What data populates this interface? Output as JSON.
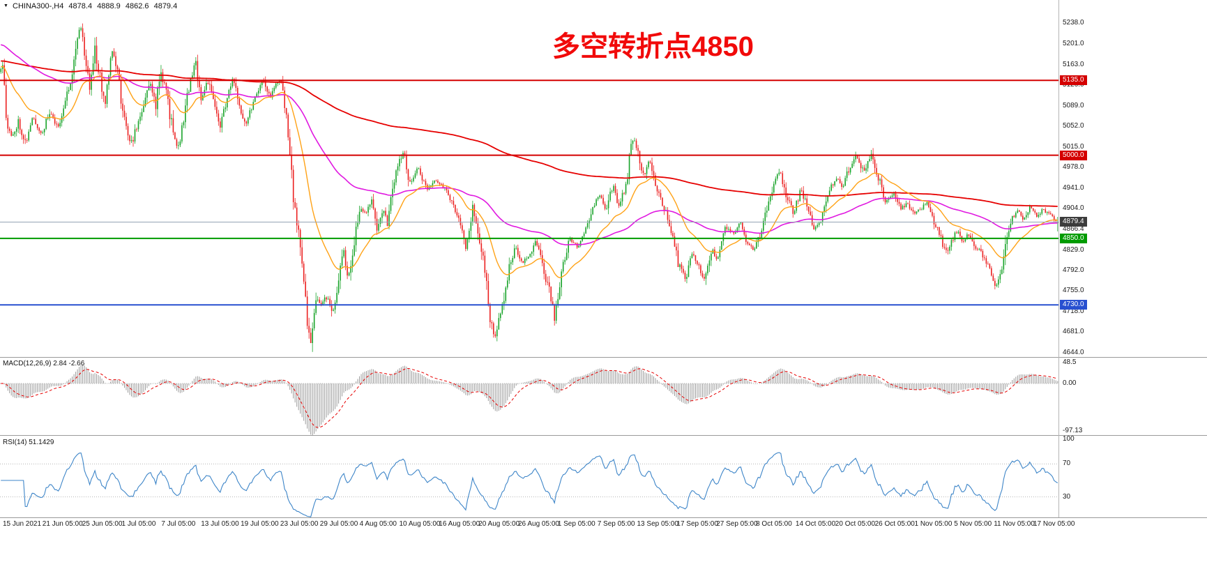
{
  "app": {
    "symbol_header": {
      "marker": "▼",
      "symbol_period": "CHINA300-,H4",
      "open": "4878.4",
      "high": "4888.9",
      "low": "4862.6",
      "close": "4879.4"
    },
    "annotation": {
      "text": "多空转折点4850",
      "color": "#f10a0a"
    }
  },
  "colors": {
    "up": "#18a329",
    "down": "#eb2020",
    "macd_hist": "#9b9b9b",
    "macd_signal": "#e60000",
    "rsi_line": "#3d85c8",
    "current_price_line": "#94a2b4",
    "price_tag_bg": "#3c3c3c",
    "separator": "#9a9a9a",
    "axis_text": "#1a1a1a",
    "grid_dotted": "#b4b4b4"
  },
  "price_axis": {
    "ticks": [
      "5238.0",
      "5201.0",
      "5163.0",
      "5126.0",
      "5089.0",
      "5052.0",
      "5015.0",
      "4978.0",
      "4941.0",
      "4904.0",
      "4866.4",
      "4829.0",
      "4792.0",
      "4755.0",
      "4718.0",
      "4681.0",
      "4644.0"
    ],
    "current_label": "4879.4"
  },
  "time_axis": {
    "labels": [
      "15 Jun 2021",
      "21 Jun 05:00",
      "25 Jun 05:00",
      "1 Jul 05:00",
      "7 Jul 05:00",
      "13 Jul 05:00",
      "19 Jul 05:00",
      "23 Jul 05:00",
      "29 Jul 05:00",
      "4 Aug 05:00",
      "10 Aug 05:00",
      "16 Aug 05:00",
      "20 Aug 05:00",
      "26 Aug 05:00",
      "1 Sep 05:00",
      "7 Sep 05:00",
      "13 Sep 05:00",
      "17 Sep 05:00",
      "27 Sep 05:00",
      "8 Oct 05:00",
      "14 Oct 05:00",
      "20 Oct 05:00",
      "26 Oct 05:00",
      "1 Nov 05:00",
      "5 Nov 05:00",
      "11 Nov 05:00",
      "17 Nov 05:00"
    ]
  },
  "panels": {
    "macd": {
      "title": "MACD(12,26,9) 2.84 -2.66",
      "scale_labels": [
        "48.5",
        "0.00",
        "-97.13"
      ]
    },
    "rsi": {
      "title": "RSI(14) 51.1429",
      "scale_labels": [
        "100",
        "70",
        "30"
      ]
    }
  },
  "chart_data": {
    "type": "candlestick",
    "symbol": "CHINA300-",
    "timeframe": "H4",
    "x_range": [
      "15 Jun 2021",
      "17 Nov 2021"
    ],
    "y_range": [
      4636,
      5280
    ],
    "candle_count": 608,
    "noise_seed": 11,
    "current_price": 4879.4,
    "last_candle": {
      "open": 4878.4,
      "high": 4888.9,
      "low": 4862.6,
      "close": 4879.4
    },
    "key_levels": [
      {
        "label": "5135.0",
        "price": 5135.0,
        "color": "#d40000"
      },
      {
        "label": "5000.0",
        "price": 5000.0,
        "color": "#d40000"
      },
      {
        "label": "4850.0",
        "price": 4850.0,
        "color": "#009b00"
      },
      {
        "label": "4730.0",
        "price": 4730.0,
        "color": "#2850d0"
      }
    ],
    "moving_averages": [
      {
        "name": "ma-slow-red",
        "period": 400,
        "init": 5170,
        "color": "#e60000",
        "width": 1.8
      },
      {
        "name": "ma-mid-magenta",
        "period": 110,
        "init": 5200,
        "color": "#e019e0",
        "width": 1.6
      },
      {
        "name": "ma-fast-orange",
        "period": 28,
        "init": 5160,
        "color": "#ffa216",
        "width": 1.4
      }
    ],
    "indicators": {
      "macd": {
        "fast": 12,
        "slow": 26,
        "signal_period": 9,
        "main_value": 2.84,
        "signal_value": -2.66,
        "scale_max": 48.5,
        "scale_min": -97.13
      },
      "rsi": {
        "period": 14,
        "value": 51.1429,
        "upper_level": 70,
        "lower_level": 30
      }
    },
    "price_path": [
      [
        0,
        5150
      ],
      [
        0.004,
        5172
      ],
      [
        0.007,
        5058
      ],
      [
        0.012,
        5030
      ],
      [
        0.018,
        5062
      ],
      [
        0.025,
        5022
      ],
      [
        0.032,
        5068
      ],
      [
        0.04,
        5038
      ],
      [
        0.048,
        5078
      ],
      [
        0.055,
        5048
      ],
      [
        0.062,
        5092
      ],
      [
        0.068,
        5142
      ],
      [
        0.075,
        5225
      ],
      [
        0.078,
        5232
      ],
      [
        0.082,
        5160
      ],
      [
        0.086,
        5122
      ],
      [
        0.09,
        5198
      ],
      [
        0.095,
        5142
      ],
      [
        0.1,
        5092
      ],
      [
        0.106,
        5196
      ],
      [
        0.112,
        5150
      ],
      [
        0.118,
        5062
      ],
      [
        0.125,
        5022
      ],
      [
        0.132,
        5062
      ],
      [
        0.138,
        5102
      ],
      [
        0.143,
        5132
      ],
      [
        0.148,
        5090
      ],
      [
        0.153,
        5152
      ],
      [
        0.158,
        5112
      ],
      [
        0.165,
        5032
      ],
      [
        0.17,
        5012
      ],
      [
        0.176,
        5092
      ],
      [
        0.181,
        5135
      ],
      [
        0.186,
        5166
      ],
      [
        0.191,
        5102
      ],
      [
        0.197,
        5135
      ],
      [
        0.203,
        5092
      ],
      [
        0.209,
        5052
      ],
      [
        0.215,
        5102
      ],
      [
        0.221,
        5135
      ],
      [
        0.227,
        5092
      ],
      [
        0.233,
        5056
      ],
      [
        0.239,
        5092
      ],
      [
        0.245,
        5122
      ],
      [
        0.25,
        5136
      ],
      [
        0.256,
        5102
      ],
      [
        0.261,
        5126
      ],
      [
        0.266,
        5136
      ],
      [
        0.271,
        5082
      ],
      [
        0.275,
        4992
      ],
      [
        0.279,
        4902
      ],
      [
        0.283,
        4862
      ],
      [
        0.287,
        4802
      ],
      [
        0.291,
        4692
      ],
      [
        0.294,
        4656
      ],
      [
        0.297,
        4702
      ],
      [
        0.3,
        4742
      ],
      [
        0.305,
        4732
      ],
      [
        0.31,
        4746
      ],
      [
        0.315,
        4712
      ],
      [
        0.32,
        4756
      ],
      [
        0.325,
        4832
      ],
      [
        0.33,
        4778
      ],
      [
        0.336,
        4852
      ],
      [
        0.341,
        4904
      ],
      [
        0.347,
        4898
      ],
      [
        0.352,
        4916
      ],
      [
        0.357,
        4866
      ],
      [
        0.362,
        4904
      ],
      [
        0.367,
        4876
      ],
      [
        0.373,
        4952
      ],
      [
        0.381,
        5008
      ],
      [
        0.388,
        4952
      ],
      [
        0.396,
        4976
      ],
      [
        0.404,
        4936
      ],
      [
        0.412,
        4956
      ],
      [
        0.42,
        4942
      ],
      [
        0.428,
        4916
      ],
      [
        0.436,
        4872
      ],
      [
        0.441,
        4836
      ],
      [
        0.447,
        4906
      ],
      [
        0.453,
        4856
      ],
      [
        0.459,
        4792
      ],
      [
        0.464,
        4702
      ],
      [
        0.469,
        4672
      ],
      [
        0.475,
        4726
      ],
      [
        0.481,
        4792
      ],
      [
        0.487,
        4836
      ],
      [
        0.494,
        4806
      ],
      [
        0.5,
        4816
      ],
      [
        0.507,
        4846
      ],
      [
        0.513,
        4802
      ],
      [
        0.519,
        4762
      ],
      [
        0.525,
        4702
      ],
      [
        0.531,
        4792
      ],
      [
        0.539,
        4846
      ],
      [
        0.546,
        4836
      ],
      [
        0.553,
        4856
      ],
      [
        0.56,
        4904
      ],
      [
        0.567,
        4926
      ],
      [
        0.574,
        4902
      ],
      [
        0.58,
        4946
      ],
      [
        0.586,
        4906
      ],
      [
        0.593,
        4956
      ],
      [
        0.599,
        5040
      ],
      [
        0.604,
        5002
      ],
      [
        0.609,
        4962
      ],
      [
        0.614,
        4996
      ],
      [
        0.62,
        4942
      ],
      [
        0.628,
        4906
      ],
      [
        0.636,
        4856
      ],
      [
        0.642,
        4802
      ],
      [
        0.648,
        4776
      ],
      [
        0.654,
        4822
      ],
      [
        0.66,
        4802
      ],
      [
        0.666,
        4778
      ],
      [
        0.673,
        4832
      ],
      [
        0.679,
        4812
      ],
      [
        0.687,
        4872
      ],
      [
        0.694,
        4856
      ],
      [
        0.7,
        4882
      ],
      [
        0.706,
        4842
      ],
      [
        0.714,
        4828
      ],
      [
        0.722,
        4878
      ],
      [
        0.73,
        4938
      ],
      [
        0.738,
        4972
      ],
      [
        0.744,
        4926
      ],
      [
        0.75,
        4896
      ],
      [
        0.758,
        4938
      ],
      [
        0.764,
        4906
      ],
      [
        0.77,
        4868
      ],
      [
        0.777,
        4884
      ],
      [
        0.784,
        4938
      ],
      [
        0.791,
        4958
      ],
      [
        0.797,
        4942
      ],
      [
        0.803,
        4978
      ],
      [
        0.81,
        5000
      ],
      [
        0.817,
        4966
      ],
      [
        0.824,
        5006
      ],
      [
        0.832,
        4952
      ],
      [
        0.838,
        4916
      ],
      [
        0.845,
        4932
      ],
      [
        0.852,
        4902
      ],
      [
        0.858,
        4914
      ],
      [
        0.864,
        4894
      ],
      [
        0.871,
        4904
      ],
      [
        0.877,
        4914
      ],
      [
        0.883,
        4882
      ],
      [
        0.889,
        4854
      ],
      [
        0.895,
        4822
      ],
      [
        0.901,
        4852
      ],
      [
        0.906,
        4864
      ],
      [
        0.911,
        4844
      ],
      [
        0.916,
        4858
      ],
      [
        0.921,
        4834
      ],
      [
        0.926,
        4830
      ],
      [
        0.934,
        4800
      ],
      [
        0.942,
        4762
      ],
      [
        0.948,
        4802
      ],
      [
        0.953,
        4862
      ],
      [
        0.958,
        4890
      ],
      [
        0.963,
        4902
      ],
      [
        0.968,
        4884
      ],
      [
        0.974,
        4906
      ],
      [
        0.98,
        4888
      ],
      [
        0.986,
        4902
      ],
      [
        0.992,
        4894
      ],
      [
        1,
        4879.4
      ]
    ]
  }
}
